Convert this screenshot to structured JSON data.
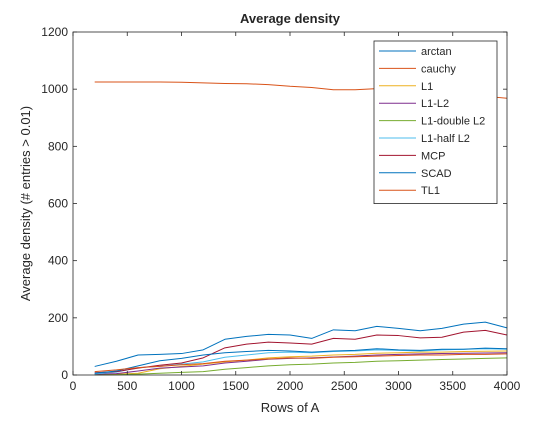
{
  "chart_data": {
    "type": "line",
    "title": "Average density",
    "xlabel": "Rows of A",
    "ylabel": "Average density (# entries > 0.01)",
    "xlim": [
      0,
      4000
    ],
    "ylim": [
      0,
      1200
    ],
    "xticks": [
      0,
      500,
      1000,
      1500,
      2000,
      2500,
      3000,
      3500,
      4000
    ],
    "yticks": [
      0,
      200,
      400,
      600,
      800,
      1000,
      1200
    ],
    "grid": false,
    "legend_position": "top-right",
    "x": [
      200,
      400,
      600,
      800,
      1000,
      1200,
      1400,
      1600,
      1800,
      2000,
      2200,
      2400,
      2600,
      2800,
      3000,
      3200,
      3400,
      3600,
      3800,
      4000
    ],
    "series": [
      {
        "name": "arctan",
        "color": "#0072BD",
        "values": [
          30,
          48,
          70,
          72,
          75,
          88,
          125,
          135,
          142,
          140,
          128,
          158,
          155,
          170,
          163,
          155,
          163,
          178,
          185,
          165
        ]
      },
      {
        "name": "cauchy",
        "color": "#D95319",
        "values": [
          1025,
          1025,
          1025,
          1025,
          1024,
          1022,
          1020,
          1019,
          1016,
          1010,
          1006,
          998,
          998,
          1002,
          1001,
          996,
          991,
          983,
          975,
          968
        ]
      },
      {
        "name": "L1",
        "color": "#EDB120",
        "values": [
          2,
          3,
          6,
          22,
          30,
          38,
          46,
          52,
          60,
          64,
          66,
          70,
          72,
          76,
          78,
          80,
          80,
          82,
          83,
          84
        ]
      },
      {
        "name": "L1-L2",
        "color": "#7E2F8E",
        "values": [
          3,
          5,
          14,
          24,
          28,
          32,
          42,
          48,
          55,
          58,
          60,
          63,
          66,
          70,
          72,
          74,
          75,
          76,
          77,
          78
        ]
      },
      {
        "name": "L1-double L2",
        "color": "#77AC30",
        "values": [
          0,
          1,
          3,
          6,
          9,
          12,
          20,
          26,
          32,
          36,
          38,
          42,
          44,
          48,
          50,
          52,
          54,
          56,
          58,
          60
        ]
      },
      {
        "name": "L1-half L2",
        "color": "#4DBEEE",
        "values": [
          4,
          10,
          26,
          30,
          38,
          46,
          62,
          70,
          78,
          80,
          78,
          82,
          84,
          88,
          86,
          84,
          88,
          90,
          92,
          90
        ]
      },
      {
        "name": "MCP",
        "color": "#A2142F",
        "values": [
          8,
          12,
          24,
          34,
          42,
          60,
          95,
          108,
          115,
          112,
          108,
          128,
          125,
          140,
          138,
          130,
          132,
          150,
          156,
          140
        ]
      },
      {
        "name": "SCAD",
        "color": "#0072BD",
        "values": [
          6,
          14,
          32,
          50,
          58,
          70,
          78,
          82,
          86,
          84,
          80,
          84,
          86,
          92,
          88,
          86,
          90,
          90,
          94,
          92
        ]
      },
      {
        "name": "TL1",
        "color": "#D95319",
        "values": [
          12,
          18,
          26,
          30,
          36,
          40,
          48,
          52,
          56,
          60,
          58,
          62,
          64,
          66,
          68,
          70,
          70,
          72,
          72,
          74
        ]
      }
    ]
  }
}
